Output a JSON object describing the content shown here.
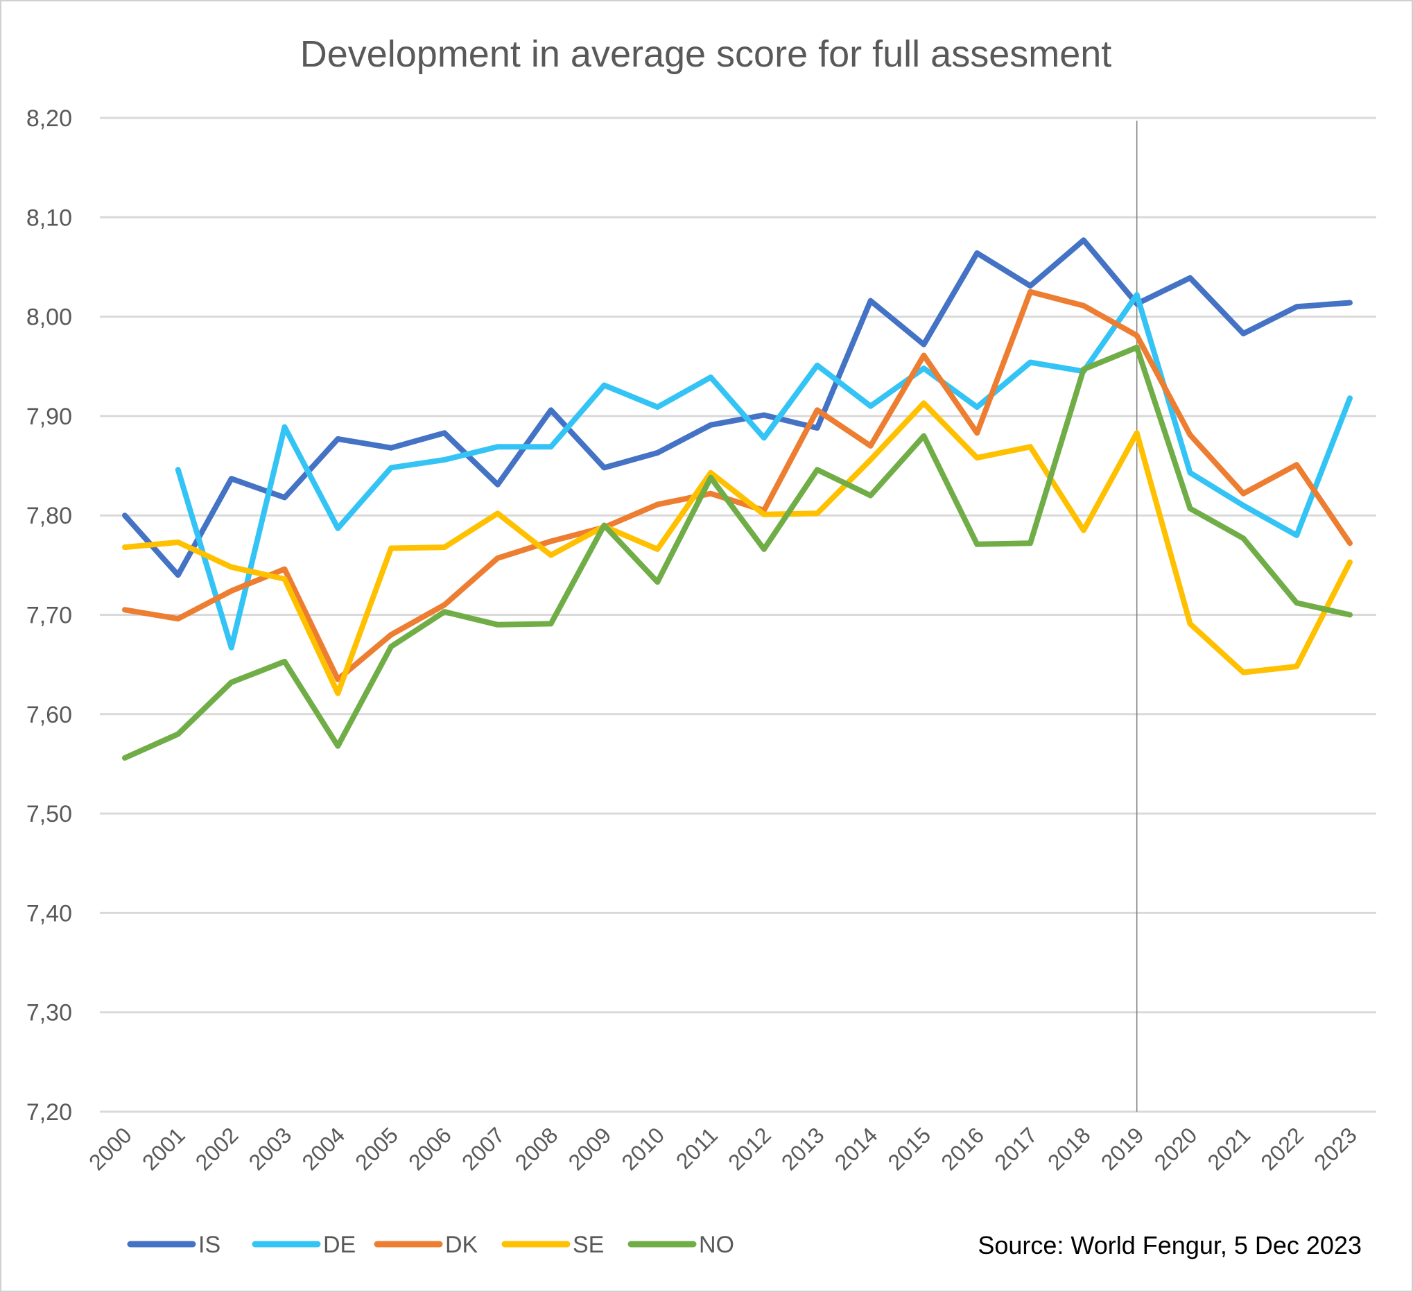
{
  "chart_data": {
    "type": "line",
    "title": "Development in average score for full assesment",
    "xlabel": "",
    "ylabel": "",
    "ylim": [
      7.2,
      8.2
    ],
    "yticks": [
      "7,20",
      "7,30",
      "7,40",
      "7,50",
      "7,60",
      "7,70",
      "7,80",
      "7,90",
      "8,00",
      "8,10",
      "8,20"
    ],
    "ytick_values": [
      7.2,
      7.3,
      7.4,
      7.5,
      7.6,
      7.7,
      7.8,
      7.9,
      8.0,
      8.1,
      8.2
    ],
    "categories": [
      "2000",
      "2001",
      "2002",
      "2003",
      "2004",
      "2005",
      "2006",
      "2007",
      "2008",
      "2009",
      "2010",
      "2011",
      "2012",
      "2013",
      "2014",
      "2015",
      "2016",
      "2017",
      "2018",
      "2019",
      "2020",
      "2021",
      "2022",
      "2023"
    ],
    "grid": true,
    "legend_position": "bottom-left",
    "reference_line_category": "2019",
    "series": [
      {
        "name": "IS",
        "color": "#4472C4",
        "values": [
          7.8,
          7.74,
          7.837,
          7.818,
          7.877,
          7.868,
          7.883,
          7.831,
          7.906,
          7.848,
          7.863,
          7.891,
          7.901,
          7.888,
          8.016,
          7.972,
          8.064,
          8.031,
          8.077,
          8.013,
          8.039,
          7.983,
          8.01,
          8.014
        ]
      },
      {
        "name": "DE",
        "color": "#33C4F5",
        "values": [
          null,
          7.846,
          7.667,
          7.889,
          7.787,
          7.848,
          7.856,
          7.869,
          7.869,
          7.931,
          7.909,
          7.939,
          7.878,
          7.951,
          7.91,
          7.948,
          7.909,
          7.954,
          7.945,
          8.022,
          7.843,
          7.81,
          7.78,
          7.918
        ]
      },
      {
        "name": "DK",
        "color": "#ED7D31",
        "values": [
          7.705,
          7.696,
          7.724,
          7.746,
          7.635,
          7.68,
          7.71,
          7.757,
          7.774,
          7.788,
          7.811,
          7.822,
          7.805,
          7.906,
          7.87,
          7.961,
          7.883,
          8.025,
          8.011,
          7.981,
          7.881,
          7.822,
          7.851,
          7.772
        ]
      },
      {
        "name": "SE",
        "color": "#FFC000",
        "values": [
          7.768,
          7.773,
          7.748,
          7.736,
          7.621,
          7.767,
          7.768,
          7.802,
          7.76,
          7.789,
          7.766,
          7.843,
          7.801,
          7.802,
          7.856,
          7.913,
          7.858,
          7.869,
          7.785,
          7.883,
          7.691,
          7.642,
          7.648,
          7.753
        ]
      },
      {
        "name": "NO",
        "color": "#70AD47",
        "values": [
          7.556,
          7.58,
          7.632,
          7.653,
          7.568,
          7.668,
          7.703,
          7.69,
          7.691,
          7.79,
          7.733,
          7.838,
          7.766,
          7.846,
          7.82,
          7.88,
          7.771,
          7.772,
          7.947,
          7.969,
          7.807,
          7.777,
          7.712,
          7.7
        ]
      }
    ],
    "annotations": [
      "Source: World Fengur, 5 Dec 2023"
    ]
  }
}
